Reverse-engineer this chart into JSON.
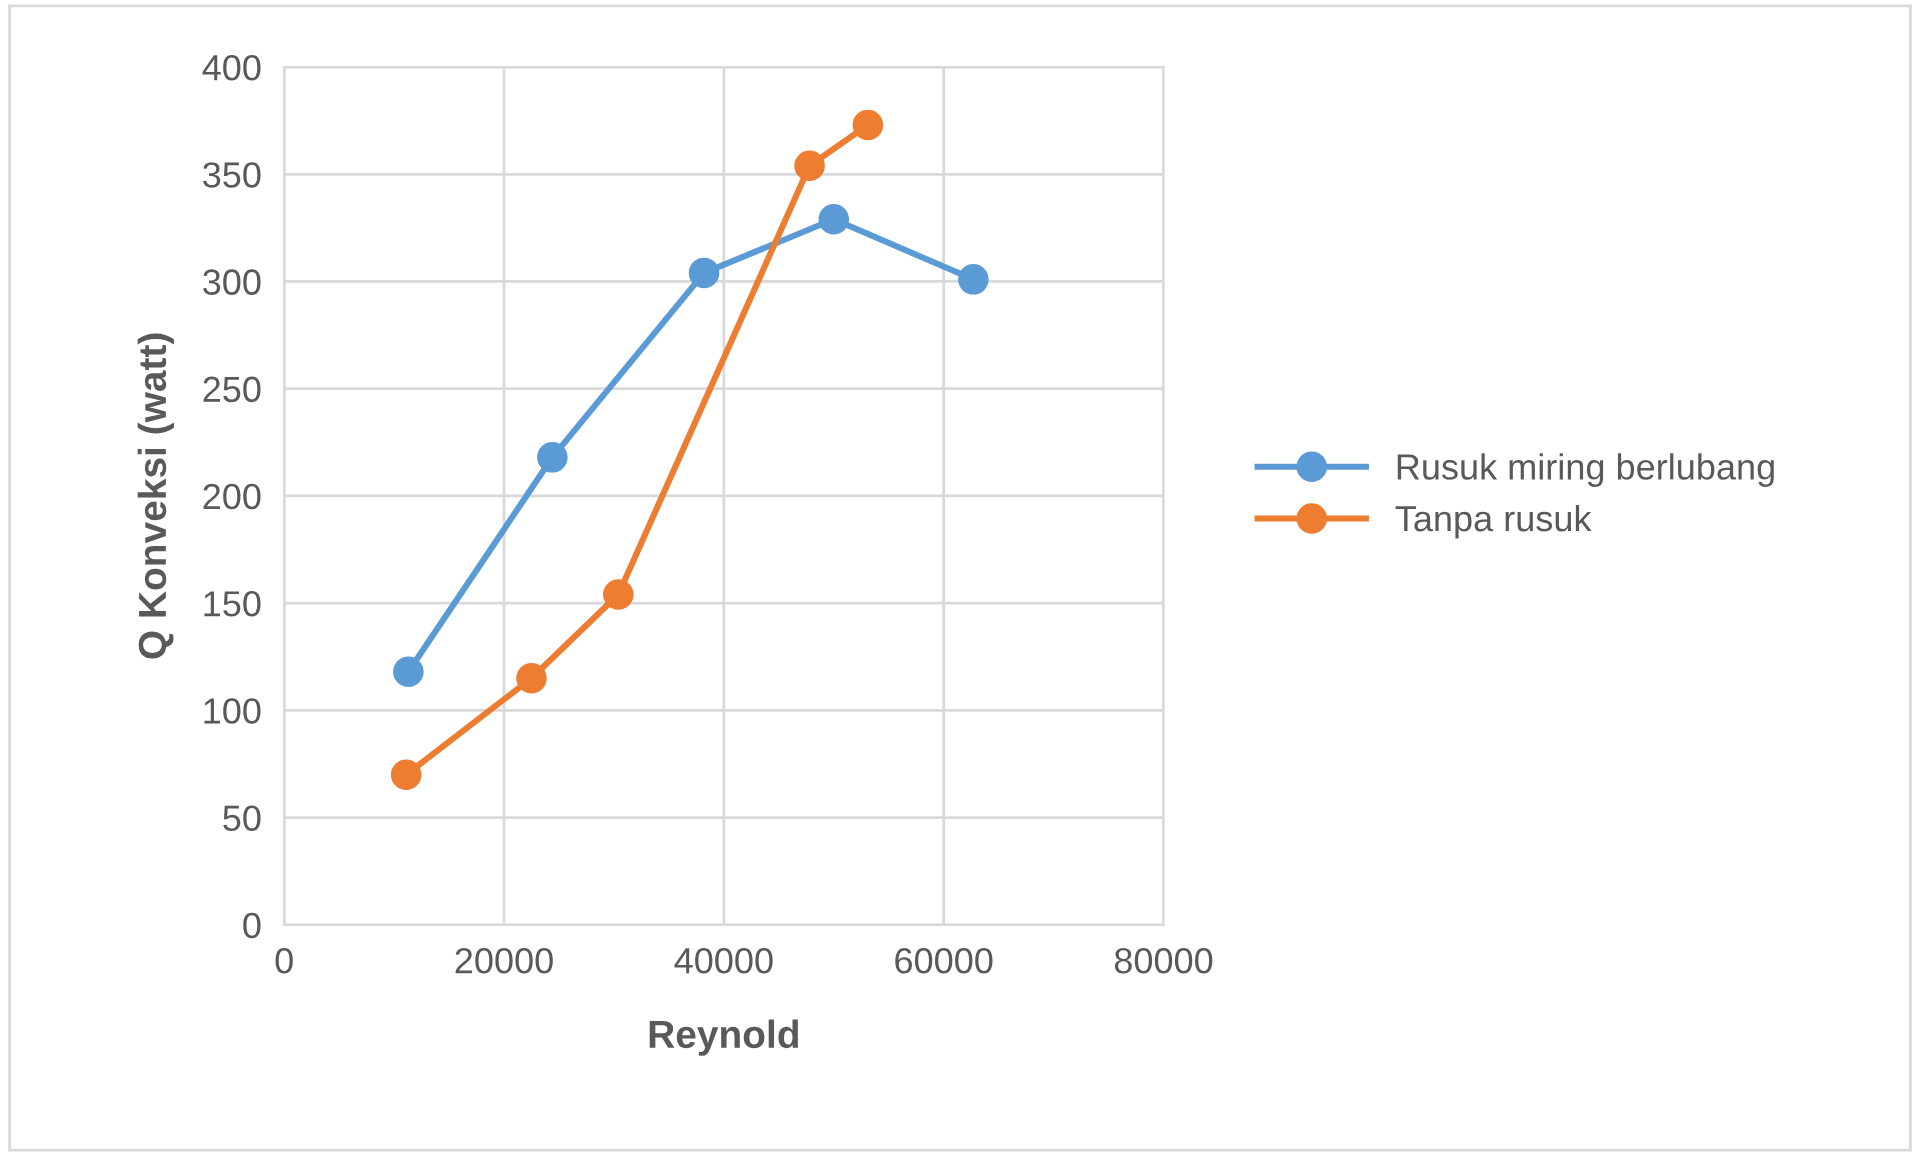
{
  "chart_data": {
    "type": "line",
    "xlabel": "Reynold",
    "ylabel": "Q Konveksi (watt)",
    "xlim": [
      0,
      80000
    ],
    "xticks": [
      0,
      20000,
      40000,
      60000,
      80000
    ],
    "ylim": [
      0,
      400
    ],
    "yticks": [
      0,
      50,
      100,
      150,
      200,
      250,
      300,
      350,
      400
    ],
    "grid": true,
    "legend": "right",
    "marker": "circle",
    "line_style": "solid",
    "series": [
      {
        "name": "Rusuk miring berlubang",
        "color": "#5b9bd5",
        "x": [
          11300,
          24400,
          38200,
          50000,
          62700
        ],
        "values": [
          118,
          218,
          304,
          329,
          301
        ]
      },
      {
        "name": "Tanpa rusuk",
        "color": "#ed7d31",
        "x": [
          11100,
          22500,
          30400,
          47800,
          53100
        ],
        "values": [
          70,
          115,
          154,
          354,
          373
        ]
      }
    ]
  }
}
